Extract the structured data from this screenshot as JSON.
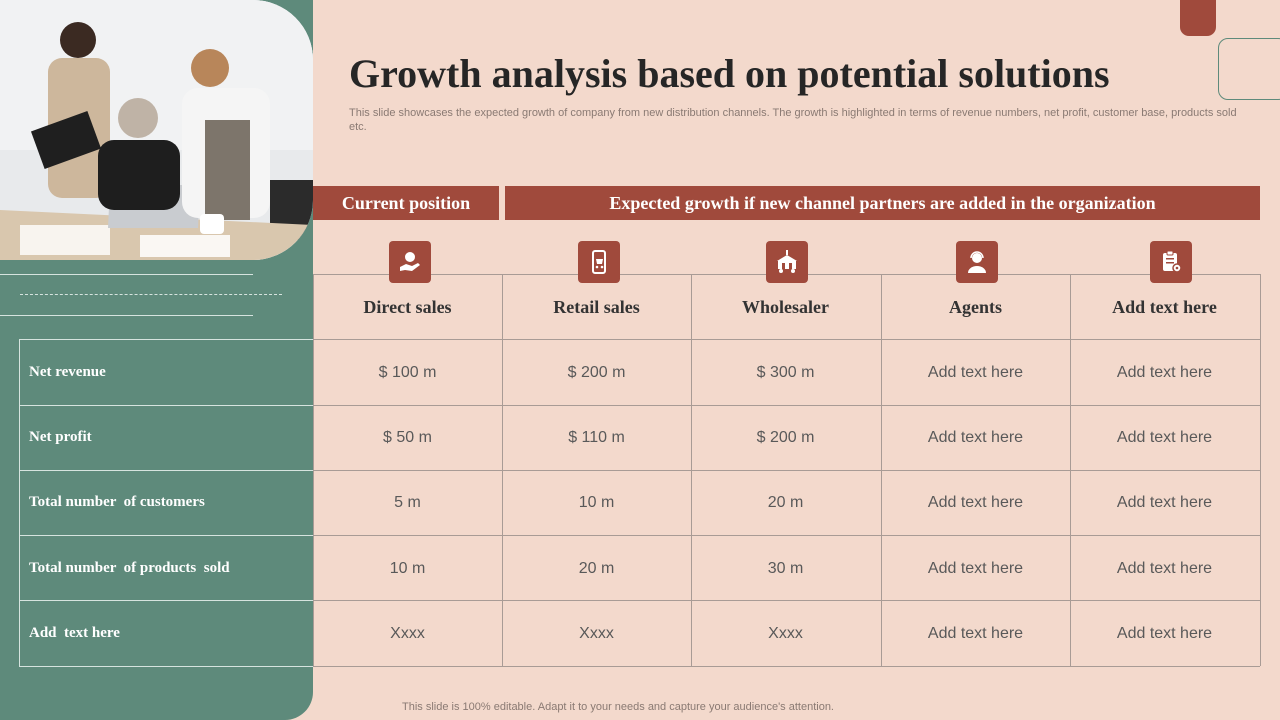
{
  "title": "Growth analysis based on potential solutions",
  "subtitle": "This slide showcases the expected growth of company from new distribution channels. The growth is highlighted in terms of revenue numbers, net profit, customer base, products sold etc.",
  "footer": "This slide is 100% editable. Adapt it to your needs and capture your audience's attention.",
  "banners": {
    "current": "Current position",
    "expected": "Expected growth if new channel partners are added in the organization"
  },
  "columns": [
    {
      "label": "Direct sales",
      "icon": "hand-money-icon"
    },
    {
      "label": "Retail sales",
      "icon": "shopping-cart-icon"
    },
    {
      "label": "Wholesaler",
      "icon": "warehouse-truck-icon"
    },
    {
      "label": "Agents",
      "icon": "agent-person-icon"
    },
    {
      "label": "Add text here",
      "icon": "clipboard-gear-icon"
    }
  ],
  "rows": [
    {
      "label": "Net revenue",
      "values": [
        "$ 100 m",
        "$ 200 m",
        "$ 300 m",
        "Add text here",
        "Add text here"
      ]
    },
    {
      "label": "Net profit",
      "values": [
        "$ 50 m",
        "$ 110 m",
        "$ 200 m",
        "Add text here",
        "Add text here"
      ]
    },
    {
      "label": "Total number  of customers",
      "values": [
        "5 m",
        "10 m",
        "20 m",
        "Add text here",
        "Add text here"
      ]
    },
    {
      "label": "Total number  of products  sold",
      "values": [
        "10 m",
        "20 m",
        "30 m",
        "Add text here",
        "Add text here"
      ]
    },
    {
      "label": "Add  text here",
      "values": [
        "Xxxx",
        "Xxxx",
        "Xxxx",
        "Add text here",
        "Add text here"
      ]
    }
  ],
  "colors": {
    "accent": "#a04a3c",
    "panel": "#5e8a7b",
    "background": "#f3d9cc"
  }
}
